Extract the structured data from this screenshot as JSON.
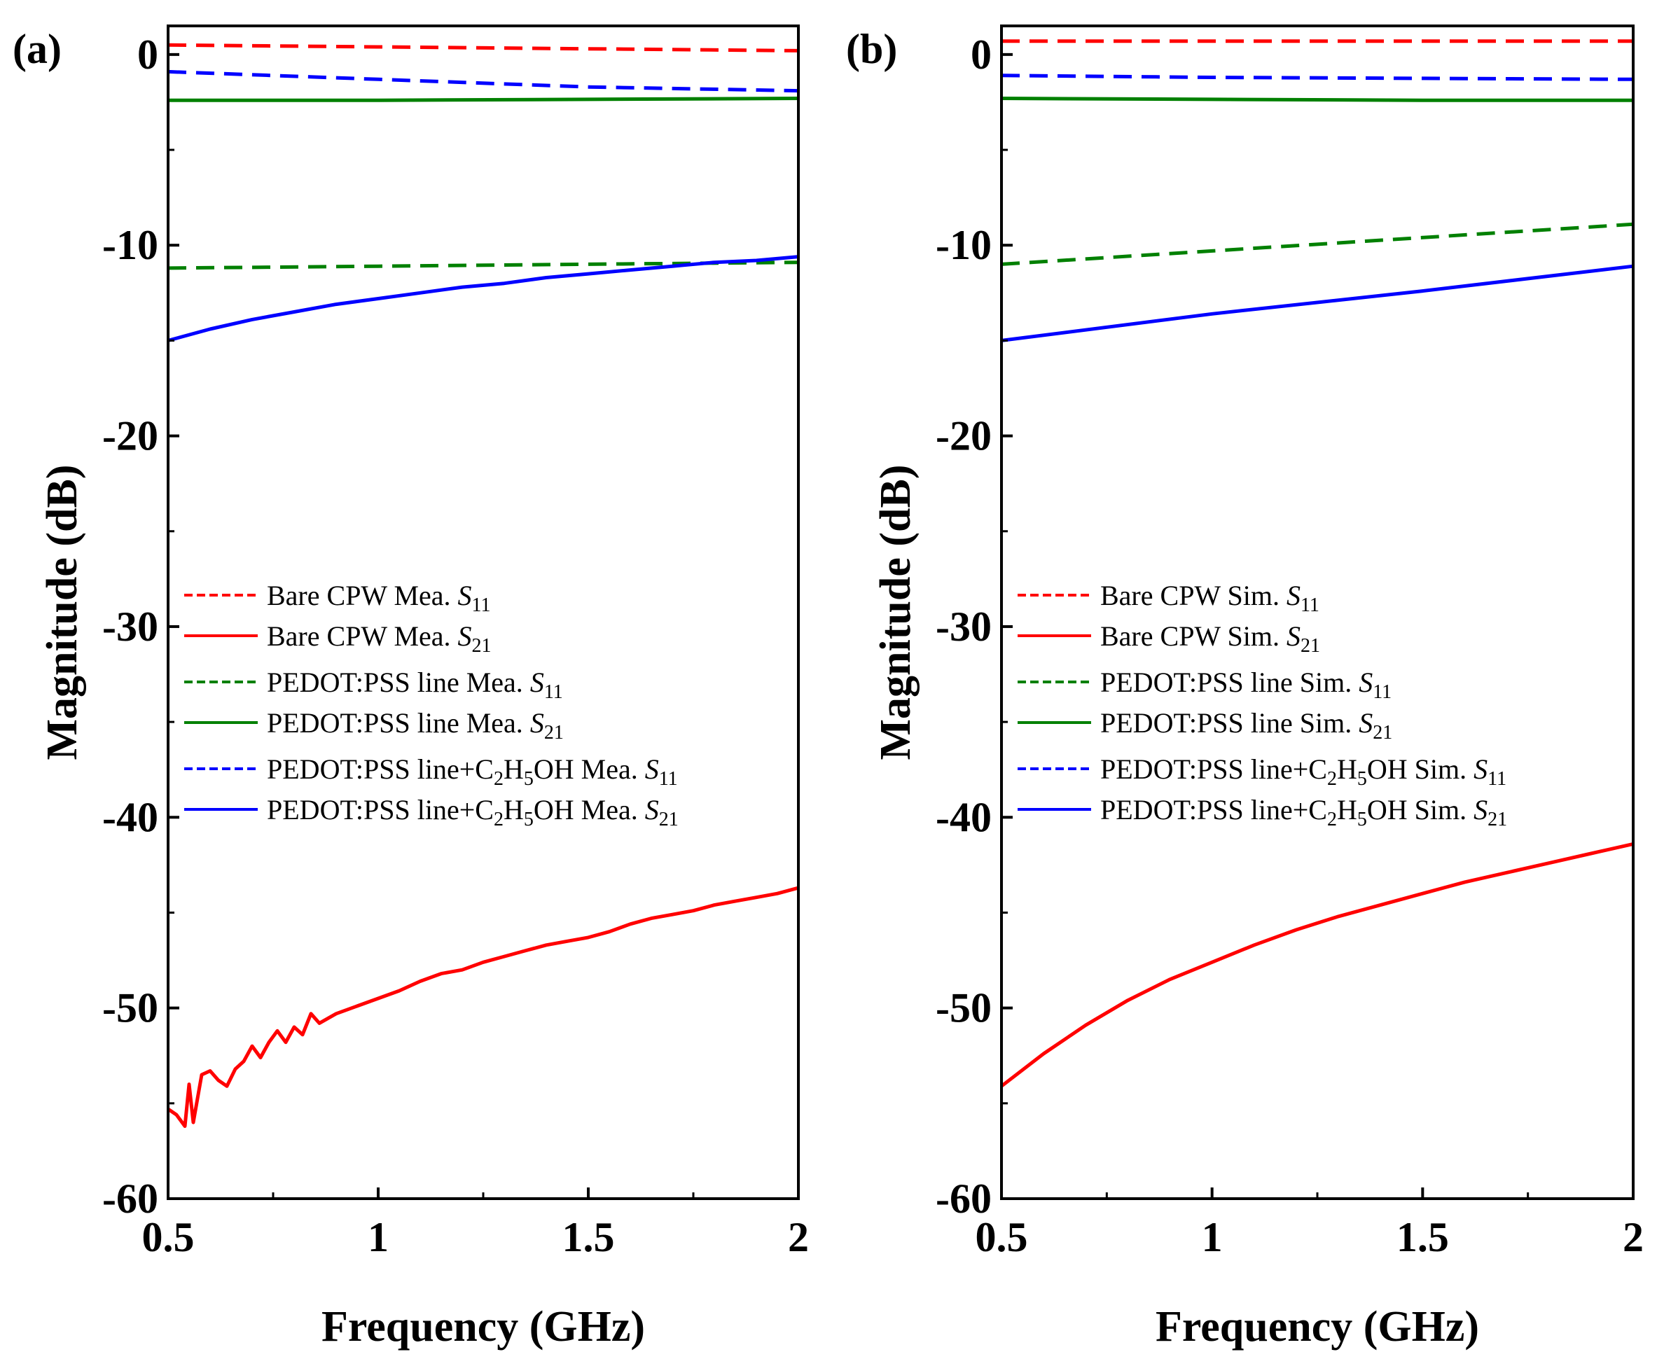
{
  "chart_data": [
    {
      "type": "line",
      "panel_label": "(a)",
      "xlabel": "Frequency (GHz)",
      "ylabel": "Magnitude (dB)",
      "xlim": [
        0.5,
        2
      ],
      "ylim": [
        -60,
        1.5
      ],
      "xticks": [
        "0.5",
        "1",
        "1.5",
        "2"
      ],
      "yticks": [
        "0",
        "-10",
        "-20",
        "-30",
        "-40",
        "-50",
        "-60"
      ],
      "legend_position": "center-left",
      "series": [
        {
          "name_main": "Bare CPW Mea. ",
          "name_sym": "S",
          "name_sub": "11",
          "color": "#ff0000",
          "style": "dashed",
          "x": [
            0.5,
            1.0,
            1.5,
            2.0
          ],
          "y": [
            0.5,
            0.4,
            0.3,
            0.2
          ]
        },
        {
          "name_main": "Bare CPW Mea. ",
          "name_sym": "S",
          "name_sub": "21",
          "color": "#ff0000",
          "style": "solid",
          "x": [
            0.5,
            0.52,
            0.54,
            0.55,
            0.56,
            0.58,
            0.6,
            0.62,
            0.64,
            0.66,
            0.68,
            0.7,
            0.72,
            0.74,
            0.76,
            0.78,
            0.8,
            0.82,
            0.84,
            0.86,
            0.9,
            0.95,
            1.0,
            1.05,
            1.1,
            1.15,
            1.2,
            1.25,
            1.3,
            1.35,
            1.4,
            1.45,
            1.5,
            1.55,
            1.6,
            1.65,
            1.7,
            1.75,
            1.8,
            1.85,
            1.9,
            1.95,
            2.0
          ],
          "y": [
            -55.3,
            -55.6,
            -56.2,
            -54.0,
            -56.0,
            -53.5,
            -53.3,
            -53.8,
            -54.1,
            -53.2,
            -52.8,
            -52.0,
            -52.6,
            -51.8,
            -51.2,
            -51.8,
            -51.0,
            -51.4,
            -50.3,
            -50.8,
            -50.3,
            -49.9,
            -49.5,
            -49.1,
            -48.6,
            -48.2,
            -48.0,
            -47.6,
            -47.3,
            -47.0,
            -46.7,
            -46.5,
            -46.3,
            -46.0,
            -45.6,
            -45.3,
            -45.1,
            -44.9,
            -44.6,
            -44.4,
            -44.2,
            -44.0,
            -43.7
          ]
        },
        {
          "name_main": "PEDOT:PSS line Mea. ",
          "name_sym": "S",
          "name_sub": "11",
          "color": "#008000",
          "style": "dashed",
          "x": [
            0.5,
            1.0,
            1.5,
            2.0
          ],
          "y": [
            -11.2,
            -11.1,
            -11.0,
            -10.9
          ]
        },
        {
          "name_main": "PEDOT:PSS line Mea. ",
          "name_sym": "S",
          "name_sub": "21",
          "color": "#008000",
          "style": "solid",
          "x": [
            0.5,
            1.0,
            1.5,
            2.0
          ],
          "y": [
            -2.4,
            -2.4,
            -2.35,
            -2.3
          ]
        },
        {
          "name_main": "PEDOT:PSS line+C",
          "name_c_sub": "2",
          "name_mid": "H",
          "name_h_sub": "5",
          "name_tail": "OH Mea. ",
          "name_sym": "S",
          "name_sub": "11",
          "color": "#0000ff",
          "style": "dashed",
          "x": [
            0.5,
            1.0,
            1.5,
            2.0
          ],
          "y": [
            -0.9,
            -1.3,
            -1.7,
            -1.9
          ]
        },
        {
          "name_main": "PEDOT:PSS line+C",
          "name_c_sub": "2",
          "name_mid": "H",
          "name_h_sub": "5",
          "name_tail": "OH Mea. ",
          "name_sym": "S",
          "name_sub": "21",
          "color": "#0000ff",
          "style": "solid",
          "x": [
            0.5,
            0.6,
            0.7,
            0.8,
            0.9,
            1.0,
            1.1,
            1.2,
            1.3,
            1.4,
            1.5,
            1.6,
            1.7,
            1.8,
            1.9,
            2.0
          ],
          "y": [
            -15.0,
            -14.4,
            -13.9,
            -13.5,
            -13.1,
            -12.8,
            -12.5,
            -12.2,
            -12.0,
            -11.7,
            -11.5,
            -11.3,
            -11.1,
            -10.9,
            -10.8,
            -10.6
          ]
        }
      ]
    },
    {
      "type": "line",
      "panel_label": "(b)",
      "xlabel": "Frequency (GHz)",
      "ylabel": "Magnitude (dB)",
      "xlim": [
        0.5,
        2
      ],
      "ylim": [
        -60,
        1.5
      ],
      "xticks": [
        "0.5",
        "1",
        "1.5",
        "2"
      ],
      "yticks": [
        "0",
        "-10",
        "-20",
        "-30",
        "-40",
        "-50",
        "-60"
      ],
      "legend_position": "center-left",
      "series": [
        {
          "name_main": "Bare CPW Sim. ",
          "name_sym": "S",
          "name_sub": "11",
          "color": "#ff0000",
          "style": "dashed",
          "x": [
            0.5,
            1.0,
            1.5,
            2.0
          ],
          "y": [
            0.7,
            0.7,
            0.7,
            0.7
          ]
        },
        {
          "name_main": "Bare CPW Sim. ",
          "name_sym": "S",
          "name_sub": "21",
          "color": "#ff0000",
          "style": "solid",
          "x": [
            0.5,
            0.6,
            0.7,
            0.8,
            0.9,
            1.0,
            1.1,
            1.2,
            1.3,
            1.4,
            1.5,
            1.6,
            1.7,
            1.8,
            1.9,
            2.0
          ],
          "y": [
            -54.1,
            -52.4,
            -50.9,
            -49.6,
            -48.5,
            -47.6,
            -46.7,
            -45.9,
            -45.2,
            -44.6,
            -44.0,
            -43.4,
            -42.9,
            -42.4,
            -41.9,
            -41.4
          ]
        },
        {
          "name_main": "PEDOT:PSS line Sim. ",
          "name_sym": "S",
          "name_sub": "11",
          "color": "#008000",
          "style": "dashed",
          "x": [
            0.5,
            1.0,
            1.5,
            2.0
          ],
          "y": [
            -11.0,
            -10.3,
            -9.6,
            -8.9
          ]
        },
        {
          "name_main": "PEDOT:PSS line Sim. ",
          "name_sym": "S",
          "name_sub": "21",
          "color": "#008000",
          "style": "solid",
          "x": [
            0.5,
            1.0,
            1.5,
            2.0
          ],
          "y": [
            -2.3,
            -2.35,
            -2.4,
            -2.4
          ]
        },
        {
          "name_main": "PEDOT:PSS line+C",
          "name_c_sub": "2",
          "name_mid": "H",
          "name_h_sub": "5",
          "name_tail": "OH Sim. ",
          "name_sym": "S",
          "name_sub": "11",
          "color": "#0000ff",
          "style": "dashed",
          "x": [
            0.5,
            1.0,
            1.5,
            2.0
          ],
          "y": [
            -1.1,
            -1.2,
            -1.25,
            -1.3
          ]
        },
        {
          "name_main": "PEDOT:PSS line+C",
          "name_c_sub": "2",
          "name_mid": "H",
          "name_h_sub": "5",
          "name_tail": "OH Sim. ",
          "name_sym": "S",
          "name_sub": "21",
          "color": "#0000ff",
          "style": "solid",
          "x": [
            0.5,
            1.0,
            1.5,
            2.0
          ],
          "y": [
            -15.0,
            -13.6,
            -12.4,
            -11.1
          ]
        }
      ]
    }
  ]
}
